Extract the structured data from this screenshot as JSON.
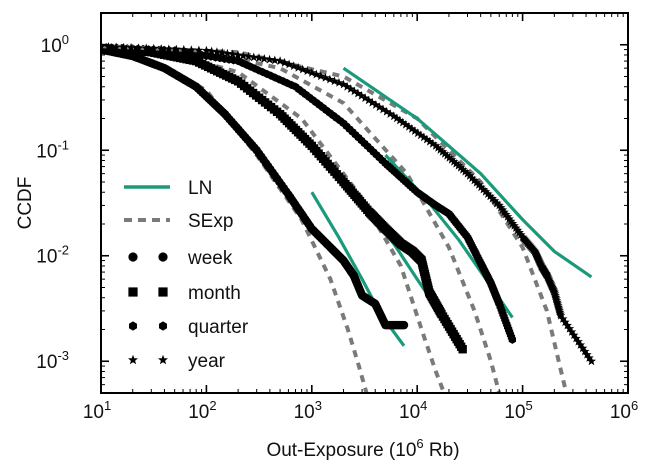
{
  "colors": {
    "ln": "#1a9a7a",
    "sexp": "#7a7a7a",
    "marker": "#000000"
  },
  "chart_data": {
    "type": "line",
    "x_scale": "log",
    "y_scale": "log",
    "xlim": [
      10,
      1000000
    ],
    "ylim": [
      0.0005,
      2
    ],
    "xlabel": "Out-Exposure (10",
    "xlabel_exp": "6",
    "xlabel_suffix": " Rb)",
    "ylabel": "CCDF",
    "x_ticks": [
      {
        "base": "10",
        "exp": "1",
        "value": 10
      },
      {
        "base": "10",
        "exp": "2",
        "value": 100
      },
      {
        "base": "10",
        "exp": "3",
        "value": 1000
      },
      {
        "base": "10",
        "exp": "4",
        "value": 10000
      },
      {
        "base": "10",
        "exp": "5",
        "value": 100000
      },
      {
        "base": "10",
        "exp": "6",
        "value": 1000000
      }
    ],
    "y_ticks": [
      {
        "base": "10",
        "exp": "0",
        "value": 1
      },
      {
        "base": "10",
        "exp": "-1",
        "value": 0.1
      },
      {
        "base": "10",
        "exp": "-2",
        "value": 0.01
      },
      {
        "base": "10",
        "exp": "-3",
        "value": 0.001
      }
    ],
    "legend": {
      "placement": "bottom-left",
      "items": [
        {
          "label": "LN",
          "kind": "ln"
        },
        {
          "label": "SExp",
          "kind": "sexp"
        },
        {
          "label": "week",
          "kind": "circle"
        },
        {
          "label": "month",
          "kind": "square"
        },
        {
          "label": "quarter",
          "kind": "hexagon"
        },
        {
          "label": "year",
          "kind": "star"
        }
      ]
    },
    "series": [
      {
        "name": "week",
        "marker": "circle",
        "x": [
          10,
          20,
          40,
          80,
          150,
          300,
          600,
          1000,
          1500,
          2000,
          2500,
          3000,
          4000,
          5000,
          7500
        ],
        "y": [
          0.9,
          0.78,
          0.6,
          0.4,
          0.22,
          0.1,
          0.038,
          0.018,
          0.012,
          0.009,
          0.0065,
          0.0042,
          0.0035,
          0.0022,
          0.0022
        ],
        "ln_x": [
          1000,
          1800,
          3000,
          4500,
          7500
        ],
        "ln_y": [
          0.04,
          0.015,
          0.006,
          0.0028,
          0.0014
        ],
        "sexp_x": [
          10,
          30,
          100,
          300,
          800,
          1500,
          2200,
          2800,
          3300
        ],
        "sexp_y": [
          0.92,
          0.7,
          0.37,
          0.09,
          0.022,
          0.006,
          0.002,
          0.0009,
          0.0005
        ]
      },
      {
        "name": "month",
        "marker": "square",
        "x": [
          10,
          30,
          80,
          200,
          500,
          1000,
          2000,
          3500,
          5000,
          7000,
          9000,
          11000,
          13000,
          17000,
          27000
        ],
        "y": [
          0.93,
          0.85,
          0.7,
          0.45,
          0.22,
          0.11,
          0.05,
          0.026,
          0.018,
          0.013,
          0.011,
          0.009,
          0.0045,
          0.0028,
          0.0013
        ],
        "ln_x": [
          3000,
          6000,
          10000,
          16000,
          27000
        ],
        "ln_y": [
          0.03,
          0.013,
          0.006,
          0.003,
          0.0012
        ],
        "sexp_x": [
          10,
          50,
          200,
          800,
          3000,
          7000,
          11000,
          15000,
          18000
        ],
        "sexp_y": [
          0.95,
          0.8,
          0.55,
          0.2,
          0.035,
          0.008,
          0.002,
          0.0008,
          0.0005
        ]
      },
      {
        "name": "quarter",
        "marker": "hexagon",
        "x": [
          10,
          50,
          200,
          700,
          2000,
          5000,
          10000,
          15000,
          20000,
          30000,
          40000,
          50000,
          60000,
          80000
        ],
        "y": [
          0.95,
          0.88,
          0.7,
          0.4,
          0.18,
          0.075,
          0.04,
          0.03,
          0.025,
          0.015,
          0.0085,
          0.0055,
          0.0035,
          0.0016
        ],
        "ln_x": [
          5000,
          12000,
          25000,
          45000,
          80000
        ],
        "ln_y": [
          0.09,
          0.035,
          0.014,
          0.006,
          0.0026
        ],
        "sexp_x": [
          10,
          100,
          500,
          2000,
          8000,
          20000,
          35000,
          50000,
          60000
        ],
        "sexp_y": [
          0.96,
          0.85,
          0.6,
          0.28,
          0.06,
          0.012,
          0.003,
          0.001,
          0.0005
        ]
      },
      {
        "name": "year",
        "marker": "star",
        "x": [
          10,
          100,
          500,
          2000,
          6000,
          15000,
          30000,
          60000,
          100000,
          130000,
          150000,
          170000,
          200000,
          230000,
          450000
        ],
        "y": [
          0.96,
          0.88,
          0.7,
          0.42,
          0.21,
          0.11,
          0.06,
          0.03,
          0.015,
          0.011,
          0.008,
          0.0065,
          0.0045,
          0.0027,
          0.001
        ],
        "ln_x": [
          2000,
          10000,
          40000,
          100000,
          200000,
          450000
        ],
        "ln_y": [
          0.6,
          0.2,
          0.06,
          0.022,
          0.011,
          0.0063
        ],
        "sexp_x": [
          10,
          200,
          2000,
          10000,
          40000,
          100000,
          170000,
          220000,
          260000
        ],
        "sexp_y": [
          0.97,
          0.85,
          0.5,
          0.2,
          0.05,
          0.012,
          0.003,
          0.001,
          0.0005
        ]
      }
    ]
  }
}
